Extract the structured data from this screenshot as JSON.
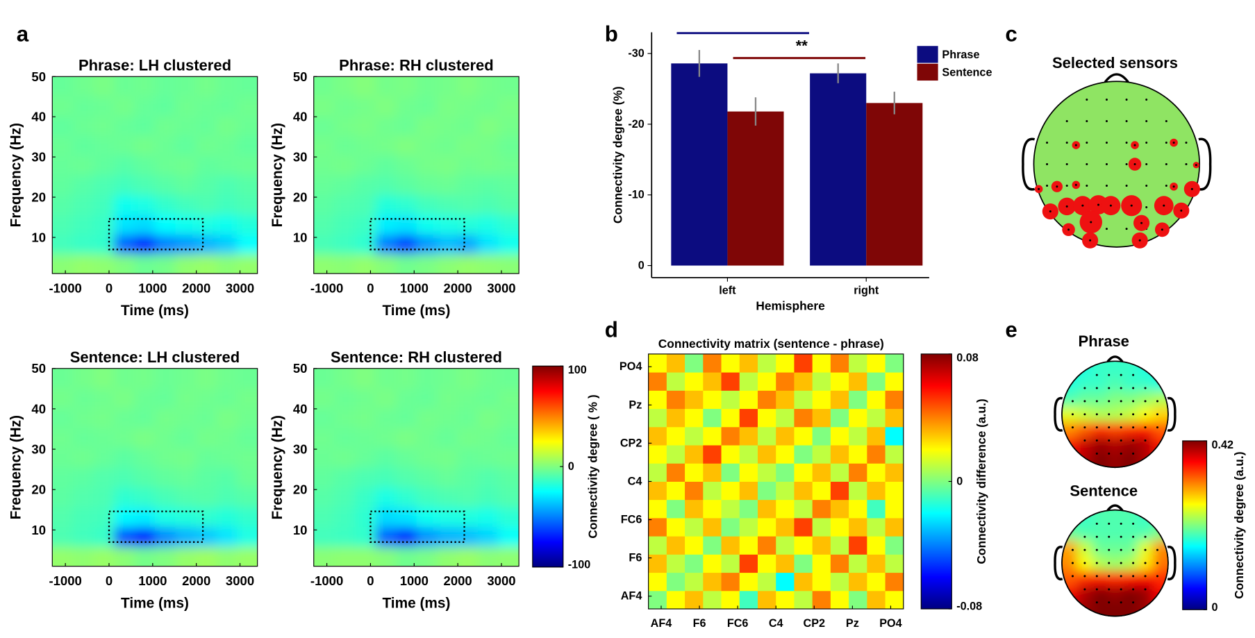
{
  "panel_labels": [
    "a",
    "b",
    "c",
    "d",
    "e"
  ],
  "chart_data": [
    {
      "type": "heatmap",
      "title": "Phrase: LH clustered",
      "xlabel": "Time (ms)",
      "ylabel": "Frequency (Hz)",
      "xlim": [
        -1300,
        3400
      ],
      "ylim": [
        1,
        50
      ],
      "xticks": [
        -1000,
        0,
        1000,
        2000,
        3000
      ],
      "yticks": [
        10,
        20,
        30,
        40,
        50
      ],
      "clim": [
        -100,
        100
      ],
      "box": {
        "x": [
          0,
          2150
        ],
        "y": [
          7,
          14.6
        ]
      },
      "values": [
        [
          2,
          4,
          3,
          0,
          -4,
          -2,
          3,
          5,
          2,
          4
        ],
        [
          -12,
          -14,
          -15,
          -55,
          -68,
          -50,
          -45,
          -40,
          -35,
          -25
        ],
        [
          -10,
          -12,
          -14,
          -30,
          -32,
          -25,
          -22,
          -20,
          -22,
          -18
        ],
        [
          -8,
          -10,
          -12,
          -22,
          -20,
          -15,
          -12,
          -10,
          -12,
          -10
        ],
        [
          -6,
          -8,
          -10,
          -12,
          -10,
          -8,
          -6,
          -8,
          -10,
          -8
        ],
        [
          -5,
          -4,
          -6,
          -8,
          -6,
          -4,
          -3,
          -6,
          -5,
          -4
        ],
        [
          -4,
          -6,
          -5,
          -4,
          -2,
          -4,
          -6,
          -3,
          -4,
          -6
        ],
        [
          -6,
          -4,
          -3,
          -5,
          -6,
          -3,
          -4,
          -5,
          -2,
          -4
        ],
        [
          -3,
          -5,
          -4,
          -2,
          -5,
          -6,
          -3,
          -4,
          -5,
          -3
        ],
        [
          -5,
          -3,
          -1,
          -4,
          -3,
          -5,
          -4,
          -2,
          -4,
          -5
        ]
      ]
    },
    {
      "type": "heatmap",
      "title": "Phrase: RH clustered",
      "xlabel": "Time (ms)",
      "ylabel": "Frequency (Hz)",
      "xlim": [
        -1300,
        3400
      ],
      "ylim": [
        1,
        50
      ],
      "xticks": [
        -1000,
        0,
        1000,
        2000,
        3000
      ],
      "yticks": [
        10,
        20,
        30,
        40,
        50
      ],
      "clim": [
        -100,
        100
      ],
      "box": {
        "x": [
          0,
          2150
        ],
        "y": [
          7,
          14.6
        ]
      },
      "values": [
        [
          3,
          2,
          4,
          1,
          -3,
          -1,
          2,
          4,
          3,
          2
        ],
        [
          -11,
          -13,
          -16,
          -50,
          -62,
          -45,
          -38,
          -42,
          -30,
          -22
        ],
        [
          -9,
          -11,
          -13,
          -28,
          -30,
          -22,
          -20,
          -18,
          -20,
          -16
        ],
        [
          -7,
          -9,
          -10,
          -18,
          -16,
          -12,
          -10,
          -9,
          -10,
          -8
        ],
        [
          -5,
          -6,
          -8,
          -9,
          -7,
          -5,
          -4,
          -6,
          -7,
          -6
        ],
        [
          -3,
          -2,
          -4,
          -6,
          -4,
          -2,
          -1,
          -3,
          -2,
          -3
        ],
        [
          -2,
          -4,
          -3,
          -2,
          0,
          -2,
          -3,
          -1,
          -2,
          -4
        ],
        [
          -4,
          -2,
          -1,
          -3,
          -4,
          -1,
          -2,
          -3,
          0,
          -2
        ],
        [
          -1,
          -3,
          -2,
          0,
          -3,
          -4,
          -1,
          -2,
          -3,
          -1
        ],
        [
          -3,
          -1,
          1,
          -2,
          -1,
          -3,
          -2,
          0,
          -2,
          -3
        ]
      ]
    },
    {
      "type": "heatmap",
      "title": "Sentence: LH clustered",
      "xlabel": "Time (ms)",
      "ylabel": "Frequency (Hz)",
      "xlim": [
        -1300,
        3400
      ],
      "ylim": [
        1,
        50
      ],
      "xticks": [
        -1000,
        0,
        1000,
        2000,
        3000
      ],
      "yticks": [
        10,
        20,
        30,
        40,
        50
      ],
      "clim": [
        -100,
        100
      ],
      "box": {
        "x": [
          0,
          2150
        ],
        "y": [
          7,
          14.6
        ]
      },
      "values": [
        [
          4,
          3,
          5,
          2,
          -2,
          0,
          4,
          6,
          3,
          5
        ],
        [
          -10,
          -12,
          -14,
          -58,
          -70,
          -48,
          -40,
          -36,
          -30,
          -20
        ],
        [
          -9,
          -11,
          -12,
          -26,
          -28,
          -20,
          -18,
          -16,
          -18,
          -15
        ],
        [
          -7,
          -9,
          -10,
          -16,
          -14,
          -11,
          -9,
          -8,
          -10,
          -8
        ],
        [
          -6,
          -7,
          -9,
          -10,
          -8,
          -6,
          -5,
          -7,
          -8,
          -4
        ],
        [
          -4,
          -3,
          -5,
          -7,
          -5,
          -3,
          -2,
          -5,
          -4,
          -3
        ],
        [
          -3,
          -5,
          -4,
          -3,
          -1,
          -3,
          -5,
          -2,
          -3,
          -5
        ],
        [
          -5,
          -3,
          -2,
          -4,
          -5,
          -2,
          -3,
          -4,
          -1,
          -3
        ],
        [
          -2,
          -4,
          -3,
          -1,
          -4,
          -5,
          -2,
          -3,
          -4,
          -2
        ],
        [
          -4,
          -2,
          0,
          -3,
          -2,
          -4,
          -3,
          -1,
          -3,
          -4
        ]
      ]
    },
    {
      "type": "heatmap",
      "title": "Sentence: RH clustered",
      "xlabel": "Time (ms)",
      "ylabel": "Frequency (Hz)",
      "xlim": [
        -1300,
        3400
      ],
      "ylim": [
        1,
        50
      ],
      "xticks": [
        -1000,
        0,
        1000,
        2000,
        3000
      ],
      "yticks": [
        10,
        20,
        30,
        40,
        50
      ],
      "clim": [
        -100,
        100
      ],
      "box": {
        "x": [
          0,
          2150
        ],
        "y": [
          7,
          14.6
        ]
      },
      "values": [
        [
          2,
          3,
          3,
          1,
          -3,
          -1,
          3,
          5,
          2,
          3
        ],
        [
          -12,
          -13,
          -15,
          -55,
          -66,
          -46,
          -40,
          -38,
          -33,
          -24
        ],
        [
          -10,
          -12,
          -16,
          -32,
          -30,
          -22,
          -20,
          -19,
          -21,
          -17
        ],
        [
          -8,
          -10,
          -14,
          -20,
          -16,
          -12,
          -10,
          -9,
          -11,
          -9
        ],
        [
          -6,
          -8,
          -10,
          -11,
          -9,
          -7,
          -5,
          -7,
          -9,
          -7
        ],
        [
          -4,
          -3,
          -5,
          -7,
          -5,
          -3,
          -2,
          -5,
          -4,
          -3
        ],
        [
          -3,
          -5,
          -4,
          -3,
          -1,
          -3,
          -5,
          -2,
          -3,
          -5
        ],
        [
          -5,
          -3,
          -2,
          -4,
          -5,
          -2,
          -3,
          -4,
          -1,
          -3
        ],
        [
          -2,
          -4,
          -3,
          -1,
          -4,
          -5,
          -2,
          -3,
          -4,
          -2
        ],
        [
          -4,
          -2,
          0,
          -3,
          -2,
          -4,
          -3,
          -1,
          -3,
          -4
        ]
      ]
    },
    {
      "type": "colorbar",
      "ylabel": "Connectivity degree ( % )",
      "ylim": [
        -100,
        100
      ],
      "yticks": [
        -100,
        0,
        100
      ]
    },
    {
      "type": "bar",
      "xlabel": "Hemisphere",
      "ylabel": "Connectivity degree (%)",
      "categories": [
        "left",
        "right"
      ],
      "ylim": [
        1.7,
        -33
      ],
      "yticks": [
        0,
        -10,
        -20,
        -30
      ],
      "legend": "right",
      "series": [
        {
          "name": "Phrase",
          "color": "#0c0c80",
          "values": [
            -28.6,
            -27.2
          ],
          "errors": [
            1.9,
            1.4
          ]
        },
        {
          "name": "Sentence",
          "color": "#7f0606",
          "values": [
            -21.8,
            -23.0
          ],
          "errors": [
            2.0,
            1.6
          ]
        }
      ],
      "annotations": [
        {
          "text": "**"
        }
      ]
    },
    {
      "type": "topoplot",
      "title": "Selected sensors",
      "head_color": "#8fe463",
      "color": "#ee1111",
      "x": [
        -0.49,
        0.22,
        0.69,
        0.22,
        0.96,
        -0.94,
        -0.72,
        -0.49,
        0.69,
        0.91,
        -0.8,
        -0.6,
        -0.41,
        -0.22,
        -0.07,
        0.18,
        0.57,
        0.78,
        -0.31,
        0.3,
        -0.58,
        0.55,
        -0.32,
        0.28
      ],
      "y": [
        0.23,
        0.23,
        0.26,
        0,
        -0.01,
        -0.3,
        -0.27,
        -0.25,
        -0.27,
        -0.3,
        -0.57,
        -0.51,
        -0.5,
        -0.49,
        -0.5,
        -0.5,
        -0.5,
        -0.56,
        -0.7,
        -0.71,
        -0.79,
        -0.79,
        -0.92,
        -0.92
      ],
      "sizes": [
        5,
        5,
        5,
        8,
        4,
        5,
        7,
        5,
        5,
        10,
        10,
        11,
        12,
        12,
        12,
        13,
        12,
        10,
        14,
        10,
        8,
        9,
        10,
        10
      ]
    },
    {
      "type": "matrix",
      "title": "Connectivity matrix (sentence - phrase)",
      "xlim": [
        0,
        14
      ],
      "ylim": [
        0,
        14
      ],
      "clim": [
        -0.08,
        0.08
      ],
      "xticks": [
        {
          "value": 0.7,
          "label": "AF4"
        },
        {
          "value": 2.8,
          "label": "F6"
        },
        {
          "value": 4.9,
          "label": "FC6"
        },
        {
          "value": 7,
          "label": "C4"
        },
        {
          "value": 9.1,
          "label": "CP2"
        },
        {
          "value": 11.2,
          "label": "Pz"
        },
        {
          "value": 13.3,
          "label": "PO4"
        }
      ],
      "yticks": [
        {
          "value": 0.7,
          "label": "AF4"
        },
        {
          "value": 2.8,
          "label": "F6"
        },
        {
          "value": 4.9,
          "label": "FC6"
        },
        {
          "value": 7,
          "label": "C4"
        },
        {
          "value": 9.1,
          "label": "CP2"
        },
        {
          "value": 11.2,
          "label": "Pz"
        },
        {
          "value": 13.3,
          "label": "PO4"
        }
      ],
      "values": [
        [
          0,
          0.02,
          0.03,
          0.01,
          0.02,
          -0.01,
          0.03,
          0.02,
          0.01,
          0.04,
          0.02,
          0,
          0.03,
          0.02
        ],
        [
          0.02,
          0,
          0.01,
          0.03,
          0.04,
          0.02,
          0.01,
          -0.02,
          0.03,
          0.02,
          0.01,
          0.03,
          0.02,
          0.04
        ],
        [
          0.03,
          0.01,
          0,
          0.02,
          0.01,
          0.05,
          0.02,
          0.03,
          0,
          0.02,
          0.04,
          0.01,
          0.03,
          0.01
        ],
        [
          0.01,
          0.03,
          0.02,
          0,
          0.03,
          0.02,
          0.04,
          0.01,
          0.02,
          0.03,
          0.01,
          0.05,
          0.02,
          0
        ],
        [
          0.04,
          0.02,
          0.01,
          0.03,
          0,
          0.01,
          0.02,
          0.03,
          0.05,
          0.01,
          0.02,
          0.03,
          0.01,
          0.03
        ],
        [
          0.02,
          0,
          0.03,
          0.02,
          0.01,
          0,
          0.03,
          0.02,
          0.01,
          0.04,
          0.03,
          0.02,
          -0.01,
          0.02
        ],
        [
          0.03,
          0.02,
          0.04,
          0.01,
          0.02,
          0.03,
          0,
          0.01,
          0.03,
          0.02,
          0.05,
          0.01,
          0.03,
          0.02
        ],
        [
          0.01,
          0.04,
          0.02,
          0.03,
          0,
          0.02,
          0.01,
          0,
          0.02,
          0.03,
          0.01,
          0.04,
          0.02,
          0.03
        ],
        [
          0.02,
          0.01,
          0.03,
          0.05,
          0.02,
          0.01,
          0.03,
          0.02,
          0,
          0.01,
          0.03,
          0.02,
          0.04,
          0.01
        ],
        [
          0.03,
          0.02,
          0.01,
          0.02,
          0.04,
          0.03,
          0.01,
          0.03,
          0.02,
          0,
          0.02,
          0.01,
          0.03,
          -0.02
        ],
        [
          0.01,
          0.03,
          0.02,
          0,
          0.02,
          0.05,
          0.02,
          0.01,
          0.04,
          0.03,
          0,
          0.02,
          0.01,
          0.03
        ],
        [
          0.02,
          0.04,
          0.03,
          0.02,
          0.01,
          0.02,
          0.04,
          0.03,
          0.01,
          0.02,
          0.03,
          0,
          0.02,
          0.04
        ],
        [
          0.04,
          0.01,
          0.02,
          0.03,
          0.05,
          0.01,
          0.02,
          0.04,
          0.03,
          0.01,
          0.02,
          0.03,
          0,
          0.02
        ],
        [
          0.02,
          0.03,
          0,
          0.04,
          0.02,
          0.03,
          0.01,
          0.02,
          0.05,
          0.02,
          0.04,
          0.01,
          0.02,
          0
        ]
      ]
    },
    {
      "type": "colorbar",
      "ylabel": "Connectivity difference (a.u.)",
      "ylim": [
        -0.08,
        0.08
      ],
      "yticks": [
        -0.08,
        0,
        0.08
      ]
    },
    {
      "type": "topomap",
      "title": "Phrase",
      "clim": [
        0,
        0.42
      ],
      "values": [
        [
          0.17,
          0.17,
          0.18,
          0.18,
          0.18,
          0.17,
          0.17
        ],
        [
          0.17,
          0.18,
          0.18,
          0.19,
          0.18,
          0.18,
          0.17
        ],
        [
          0.19,
          0.2,
          0.2,
          0.21,
          0.21,
          0.22,
          0.23
        ],
        [
          0.25,
          0.24,
          0.23,
          0.23,
          0.24,
          0.26,
          0.28
        ],
        [
          0.31,
          0.33,
          0.35,
          0.34,
          0.35,
          0.36,
          0.33
        ],
        [
          0.36,
          0.39,
          0.41,
          0.4,
          0.41,
          0.4,
          0.36
        ],
        [
          0.37,
          0.4,
          0.42,
          0.41,
          0.42,
          0.4,
          0.36
        ]
      ]
    },
    {
      "type": "topomap",
      "title": "Sentence",
      "clim": [
        0,
        0.42
      ],
      "values": [
        [
          0.18,
          0.18,
          0.19,
          0.19,
          0.19,
          0.18,
          0.18
        ],
        [
          0.2,
          0.19,
          0.19,
          0.19,
          0.19,
          0.19,
          0.21
        ],
        [
          0.3,
          0.24,
          0.2,
          0.2,
          0.2,
          0.25,
          0.31
        ],
        [
          0.31,
          0.26,
          0.23,
          0.22,
          0.23,
          0.27,
          0.32
        ],
        [
          0.33,
          0.35,
          0.36,
          0.35,
          0.36,
          0.37,
          0.35
        ],
        [
          0.37,
          0.4,
          0.42,
          0.41,
          0.42,
          0.41,
          0.37
        ],
        [
          0.38,
          0.41,
          0.42,
          0.42,
          0.42,
          0.41,
          0.37
        ]
      ]
    },
    {
      "type": "colorbar",
      "ylabel": "Connectivity degree (a.u.)",
      "ylim": [
        0,
        0.42
      ],
      "yticks": [
        0,
        0.42
      ]
    }
  ]
}
